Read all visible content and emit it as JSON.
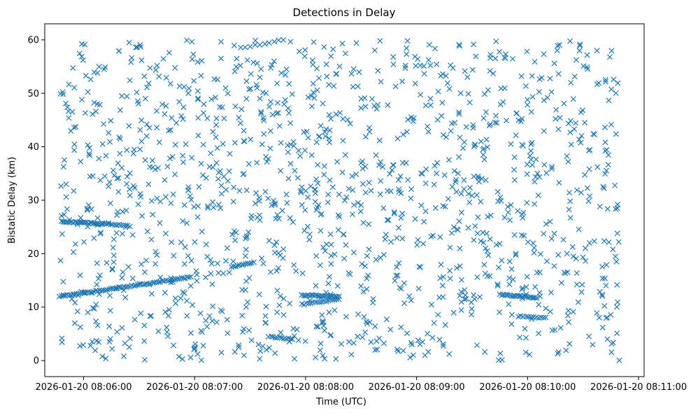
{
  "chart_data": {
    "type": "scatter",
    "title": "Detections in Delay",
    "xlabel": "Time (UTC)",
    "ylabel": "Bistatic Delay (km)",
    "marker": "x",
    "marker_color": "#1f77b4",
    "grid": false,
    "legend": "none",
    "xlim": [
      "2026-01-20 08:05:39",
      "2026-01-20 08:11:03"
    ],
    "ylim": [
      -3,
      63
    ],
    "x_ticks": [
      "2026-01-20 08:06:00",
      "2026-01-20 08:07:00",
      "2026-01-20 08:08:00",
      "2026-01-20 08:09:00",
      "2026-01-20 08:10:00",
      "2026-01-20 08:11:00"
    ],
    "y_ticks": [
      0,
      10,
      20,
      30,
      40,
      50,
      60
    ],
    "series": [
      {
        "style": "tracks",
        "segments": [
          {
            "t_start": "2026-01-20 08:05:47",
            "t_end": "2026-01-20 08:06:58",
            "d_start": 12.0,
            "d_end": 15.6,
            "points": 70
          },
          {
            "t_start": "2026-01-20 08:05:48",
            "t_end": "2026-01-20 08:06:10",
            "d_start": 26.0,
            "d_end": 25.6,
            "points": 28
          },
          {
            "t_start": "2026-01-20 08:06:10",
            "t_end": "2026-01-20 08:06:25",
            "d_start": 25.6,
            "d_end": 25.2,
            "points": 14
          },
          {
            "t_start": "2026-01-20 08:07:20",
            "t_end": "2026-01-20 08:07:32",
            "d_start": 17.5,
            "d_end": 18.3,
            "points": 12
          },
          {
            "t_start": "2026-01-20 08:07:40",
            "t_end": "2026-01-20 08:07:53",
            "d_start": 4.5,
            "d_end": 4.0,
            "points": 12
          },
          {
            "t_start": "2026-01-20 08:07:25",
            "t_end": "2026-01-20 08:07:48",
            "d_start": 58.5,
            "d_end": 60.0,
            "points": 10
          },
          {
            "t_start": "2026-01-20 08:07:58",
            "t_end": "2026-01-20 08:08:18",
            "d_start": 12.2,
            "d_end": 12.0,
            "points": 24
          },
          {
            "t_start": "2026-01-20 08:07:58",
            "t_end": "2026-01-20 08:08:18",
            "d_start": 10.5,
            "d_end": 11.5,
            "points": 18
          },
          {
            "t_start": "2026-01-20 08:09:45",
            "t_end": "2026-01-20 08:10:05",
            "d_start": 12.3,
            "d_end": 11.8,
            "points": 24
          },
          {
            "t_start": "2026-01-20 08:09:55",
            "t_end": "2026-01-20 08:10:10",
            "d_start": 8.3,
            "d_end": 8.0,
            "points": 12
          }
        ]
      },
      {
        "style": "clutter",
        "t_range": [
          "2026-01-20 08:05:47",
          "2026-01-20 08:10:50"
        ],
        "d_range": [
          0,
          60
        ],
        "points": 1350
      }
    ]
  }
}
